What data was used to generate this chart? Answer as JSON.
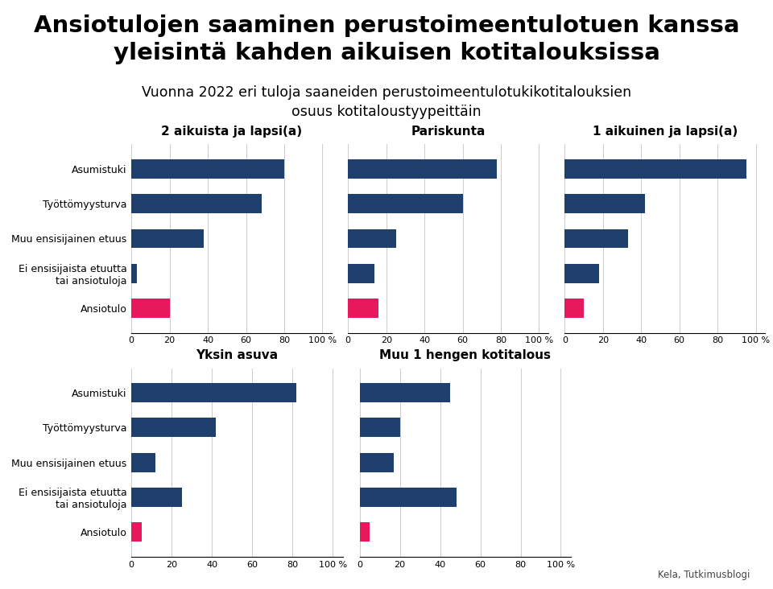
{
  "title_line1": "Ansiotulojen saaminen perustoimeentulotuen kanssa",
  "title_line2": "yleisintä kahden aikuisen kotitalouksissa",
  "subtitle_line1": "Vuonna 2022 eri tuloja saaneiden perustoimeentulotukikotitalouksien",
  "subtitle_line2": "osuus kotitaloustyypeittäin",
  "source": "Kela, Tutkimusblogi",
  "categories": [
    "Asumistuki",
    "Työttömyysturva",
    "Muu ensisijainen etuus",
    "Ei ensisijaista etuutta\ntai ansiotuloja",
    "Ansiotulo"
  ],
  "subplots": [
    {
      "title": "2 aikuista ja lapsi(a)",
      "values": [
        80,
        68,
        38,
        3,
        20
      ]
    },
    {
      "title": "Pariskunta",
      "values": [
        78,
        60,
        25,
        14,
        16
      ]
    },
    {
      "title": "1 aikuinen ja lapsi(a)",
      "values": [
        95,
        42,
        33,
        18,
        10
      ]
    },
    {
      "title": "Yksin asuva",
      "values": [
        82,
        42,
        12,
        25,
        5
      ]
    },
    {
      "title": "Muu 1 hengen kotitalous",
      "values": [
        45,
        20,
        17,
        48,
        5
      ]
    }
  ],
  "xlim": [
    0,
    105
  ],
  "xticks": [
    0,
    20,
    40,
    60,
    80,
    100
  ],
  "xtick_labels": [
    "0",
    "20",
    "40",
    "60",
    "80",
    "100 %"
  ],
  "dark_blue": "#1f3f6e",
  "pink": "#e8185c",
  "background": "#ffffff",
  "title_fontsize": 21,
  "subtitle_fontsize": 12.5,
  "subplot_title_fontsize": 11,
  "label_fontsize": 9,
  "tick_fontsize": 8
}
